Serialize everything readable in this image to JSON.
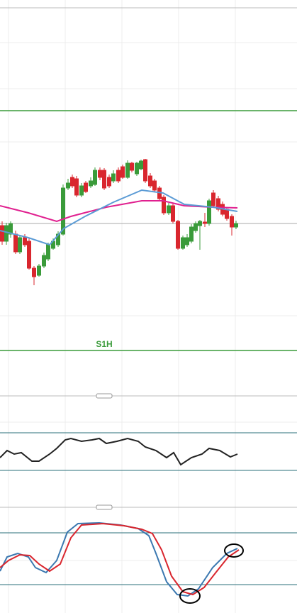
{
  "panel_label": "S1H"
}
